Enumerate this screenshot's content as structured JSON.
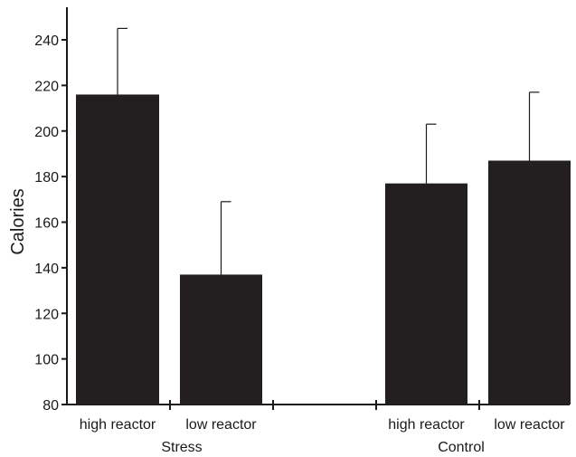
{
  "chart_data": {
    "type": "bar",
    "ylabel": "Calories",
    "ylim": [
      80,
      250
    ],
    "yticks": [
      80,
      100,
      120,
      140,
      160,
      180,
      200,
      220,
      240
    ],
    "grid": false,
    "bar_color": "#231f20",
    "bars": [
      {
        "group": "Stress",
        "category": "high reactor",
        "value": 216,
        "error_upper": 245
      },
      {
        "group": "Stress",
        "category": "low reactor",
        "value": 137,
        "error_upper": 169
      },
      {
        "group": "Control",
        "category": "high reactor",
        "value": 177,
        "error_upper": 203
      },
      {
        "group": "Control",
        "category": "low reactor",
        "value": 187,
        "error_upper": 217
      }
    ],
    "groups": [
      "Stress",
      "Control"
    ]
  }
}
